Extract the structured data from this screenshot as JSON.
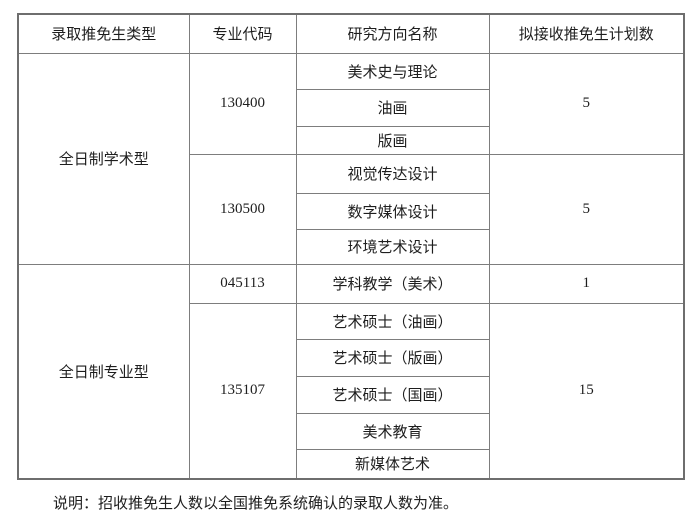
{
  "table": {
    "headers": [
      "录取推免生类型",
      "专业代码",
      "研究方向名称",
      "拟接收推免生计划数"
    ],
    "sections": [
      {
        "type": "全日制学术型",
        "groups": [
          {
            "code": "130400",
            "quota": "5",
            "directions": [
              "美术史与理论",
              "油画",
              "版画"
            ]
          },
          {
            "code": "130500",
            "quota": "5",
            "directions": [
              "视觉传达设计",
              "数字媒体设计",
              "环境艺术设计"
            ]
          }
        ]
      },
      {
        "type": "全日制专业型",
        "groups": [
          {
            "code": "045113",
            "quota": "1",
            "directions": [
              "学科教学（美术）"
            ]
          },
          {
            "code": "135107",
            "quota": "15",
            "directions": [
              "艺术硕士（油画）",
              "艺术硕士（版画）",
              "艺术硕士（国画）",
              "美术教育",
              "新媒体艺术"
            ]
          }
        ]
      }
    ]
  },
  "note": "说明：招收推免生人数以全国推免系统确认的录取人数为准。",
  "colors": {
    "border": "#7d7d7d",
    "text": "#1e1e1e",
    "background": "#ffffff"
  }
}
